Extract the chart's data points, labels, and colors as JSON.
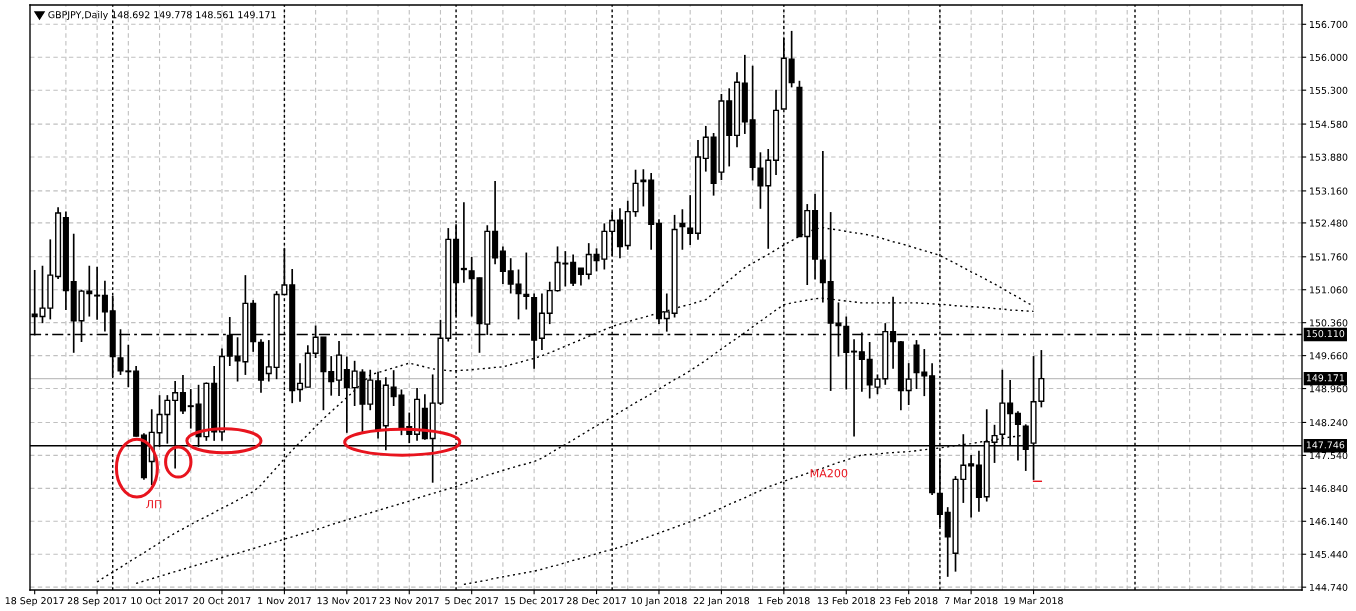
{
  "chart_data": {
    "type": "candlestick",
    "title": "GBPJPY,Daily 148.692 149.778 148.561 149.171",
    "categories": [
      "18 Sep 2017",
      null,
      null,
      null,
      null,
      null,
      null,
      null,
      "28 Sep 2017",
      null,
      null,
      null,
      null,
      null,
      null,
      null,
      "10 Oct 2017",
      null,
      null,
      null,
      null,
      null,
      null,
      null,
      "20 Oct 2017",
      null,
      null,
      null,
      null,
      null,
      null,
      null,
      "1 Nov 2017",
      null,
      null,
      null,
      null,
      null,
      null,
      null,
      "13 Nov 2017",
      null,
      null,
      null,
      null,
      null,
      null,
      null,
      "23 Nov 2017",
      null,
      null,
      null,
      null,
      null,
      null,
      null,
      "5 Dec 2017",
      null,
      null,
      null,
      null,
      null,
      null,
      null,
      "15 Dec 2017",
      null,
      null,
      null,
      null,
      null,
      null,
      null,
      "28 Dec 2017",
      null,
      null,
      null,
      null,
      null,
      null,
      null,
      "10 Jan 2018",
      null,
      null,
      null,
      null,
      null,
      null,
      null,
      "22 Jan 2018",
      null,
      null,
      null,
      null,
      null,
      null,
      null,
      "1 Feb 2018",
      null,
      null,
      null,
      null,
      null,
      null,
      null,
      "13 Feb 2018",
      null,
      null,
      null,
      null,
      null,
      null,
      null,
      "23 Feb 2018",
      null,
      null,
      null,
      null,
      null,
      null,
      null,
      "7 Mar 2018",
      null,
      null,
      null,
      null,
      null,
      null,
      null,
      "19 Mar 2018",
      null
    ],
    "ohlc": [
      [
        150.54,
        151.48,
        150.09,
        150.49
      ],
      [
        150.49,
        151.57,
        150.35,
        150.67
      ],
      [
        150.67,
        152.13,
        150.43,
        151.37
      ],
      [
        151.34,
        152.81,
        151.29,
        152.69
      ],
      [
        152.59,
        152.72,
        150.63,
        151.04
      ],
      [
        151.23,
        152.25,
        149.72,
        150.4
      ],
      [
        150.4,
        151.06,
        149.95,
        151.03
      ],
      [
        151.03,
        151.57,
        150.49,
        150.98
      ],
      [
        150.94,
        151.55,
        150.42,
        150.93
      ],
      [
        150.94,
        151.25,
        150.17,
        150.59
      ],
      [
        150.61,
        150.93,
        149.21,
        149.64
      ],
      [
        149.61,
        150.22,
        149.25,
        149.34
      ],
      [
        149.33,
        149.89,
        148.99,
        149.32
      ],
      [
        149.33,
        149.44,
        147.94,
        147.95
      ],
      [
        147.97,
        148.01,
        147.02,
        147.07
      ],
      [
        147.41,
        148.52,
        146.91,
        148.03
      ],
      [
        148.02,
        148.82,
        147.72,
        148.41
      ],
      [
        148.41,
        148.82,
        147.79,
        148.71
      ],
      [
        148.71,
        149.12,
        147.26,
        148.87
      ],
      [
        148.87,
        149.25,
        148.42,
        148.49
      ],
      [
        148.59,
        148.95,
        148.11,
        148.58
      ],
      [
        148.63,
        149.04,
        147.72,
        147.94
      ],
      [
        147.94,
        149.09,
        147.85,
        149.07
      ],
      [
        149.07,
        149.44,
        147.85,
        148.04
      ],
      [
        148.04,
        149.81,
        147.85,
        149.64
      ],
      [
        150.09,
        150.48,
        149.44,
        149.65
      ],
      [
        149.65,
        150.05,
        149.11,
        149.55
      ],
      [
        149.53,
        151.37,
        149.25,
        150.77
      ],
      [
        150.77,
        150.84,
        149.74,
        149.96
      ],
      [
        149.94,
        150.01,
        148.87,
        149.14
      ],
      [
        149.28,
        149.99,
        149.11,
        149.42
      ],
      [
        149.41,
        151.03,
        149.16,
        150.96
      ],
      [
        150.96,
        151.94,
        150.96,
        151.16
      ],
      [
        151.16,
        151.5,
        148.65,
        148.92
      ],
      [
        148.94,
        149.5,
        148.68,
        149.07
      ],
      [
        148.99,
        149.88,
        148.99,
        149.71
      ],
      [
        149.71,
        150.3,
        149.61,
        150.05
      ],
      [
        150.05,
        150.05,
        148.5,
        149.32
      ],
      [
        149.32,
        149.65,
        148.81,
        149.11
      ],
      [
        149.14,
        149.97,
        148.8,
        149.67
      ],
      [
        149.36,
        149.64,
        148.02,
        148.98
      ],
      [
        148.98,
        149.55,
        148.59,
        149.33
      ],
      [
        149.31,
        149.37,
        148.04,
        148.63
      ],
      [
        148.63,
        149.36,
        148.5,
        149.14
      ],
      [
        149.12,
        149.32,
        147.9,
        148.08
      ],
      [
        148.17,
        149.2,
        147.65,
        149.03
      ],
      [
        148.99,
        149.35,
        148.59,
        148.79
      ],
      [
        148.82,
        148.94,
        147.97,
        148.13
      ],
      [
        148.15,
        148.45,
        147.8,
        147.99
      ],
      [
        147.99,
        148.97,
        147.85,
        148.73
      ],
      [
        148.54,
        148.84,
        147.87,
        147.9
      ],
      [
        147.9,
        149.26,
        146.96,
        148.65
      ],
      [
        148.65,
        150.42,
        148.61,
        150.03
      ],
      [
        150.03,
        152.37,
        149.96,
        152.13
      ],
      [
        152.13,
        152.45,
        150.49,
        151.21
      ],
      [
        151.51,
        152.92,
        151.21,
        151.49
      ],
      [
        151.46,
        151.76,
        150.49,
        151.3
      ],
      [
        151.31,
        151.32,
        149.72,
        150.34
      ],
      [
        150.33,
        152.43,
        150.1,
        152.3
      ],
      [
        152.3,
        153.37,
        151.6,
        151.74
      ],
      [
        151.88,
        151.98,
        151.18,
        151.45
      ],
      [
        151.46,
        151.73,
        150.98,
        151.18
      ],
      [
        151.18,
        151.49,
        150.43,
        150.98
      ],
      [
        150.96,
        151.85,
        150.64,
        150.92
      ],
      [
        150.89,
        150.98,
        149.38,
        149.99
      ],
      [
        150.03,
        150.98,
        149.78,
        150.56
      ],
      [
        150.56,
        151.23,
        150.33,
        151.04
      ],
      [
        151.04,
        151.98,
        151.02,
        151.64
      ],
      [
        151.61,
        151.88,
        151.13,
        151.62
      ],
      [
        151.64,
        151.81,
        151.14,
        151.2
      ],
      [
        151.52,
        151.52,
        151.15,
        151.39
      ],
      [
        151.39,
        152.05,
        151.28,
        151.81
      ],
      [
        151.81,
        151.94,
        151.45,
        151.68
      ],
      [
        151.71,
        152.47,
        151.49,
        152.3
      ],
      [
        152.3,
        152.71,
        151.78,
        152.53
      ],
      [
        152.54,
        152.79,
        151.73,
        151.98
      ],
      [
        152.0,
        152.95,
        151.91,
        152.72
      ],
      [
        152.72,
        153.61,
        152.61,
        153.32
      ],
      [
        153.39,
        153.62,
        152.83,
        153.36
      ],
      [
        153.39,
        153.54,
        151.91,
        152.45
      ],
      [
        152.47,
        152.56,
        150.33,
        150.45
      ],
      [
        150.45,
        150.98,
        150.17,
        150.59
      ],
      [
        150.56,
        152.65,
        150.47,
        152.34
      ],
      [
        152.47,
        152.77,
        151.91,
        152.4
      ],
      [
        152.37,
        153.07,
        152.01,
        152.26
      ],
      [
        152.26,
        154.24,
        152.12,
        153.88
      ],
      [
        153.85,
        154.54,
        153.57,
        154.3
      ],
      [
        154.3,
        154.39,
        153.06,
        153.32
      ],
      [
        153.56,
        155.22,
        153.39,
        155.07
      ],
      [
        155.07,
        155.34,
        153.68,
        154.34
      ],
      [
        154.34,
        155.68,
        154.09,
        155.47
      ],
      [
        155.45,
        156.05,
        154.37,
        154.63
      ],
      [
        154.67,
        155.82,
        153.38,
        153.66
      ],
      [
        153.64,
        153.98,
        152.78,
        153.27
      ],
      [
        153.27,
        154.05,
        151.93,
        153.81
      ],
      [
        153.81,
        155.31,
        153.5,
        154.87
      ],
      [
        154.9,
        156.41,
        154.9,
        155.98
      ],
      [
        155.96,
        156.56,
        155.36,
        155.46
      ],
      [
        155.36,
        155.5,
        152.19,
        152.19
      ],
      [
        152.19,
        152.88,
        151.16,
        152.74
      ],
      [
        152.74,
        153.1,
        151.28,
        151.71
      ],
      [
        151.69,
        154.01,
        150.79,
        151.21
      ],
      [
        151.23,
        152.71,
        148.91,
        150.35
      ],
      [
        150.35,
        150.79,
        149.64,
        150.3
      ],
      [
        150.28,
        150.49,
        148.94,
        149.73
      ],
      [
        149.75,
        150.01,
        147.94,
        149.74
      ],
      [
        149.74,
        150.15,
        148.89,
        149.58
      ],
      [
        149.58,
        149.95,
        148.75,
        149.04
      ],
      [
        148.99,
        149.26,
        148.84,
        149.16
      ],
      [
        149.17,
        150.35,
        149.04,
        150.17
      ],
      [
        150.17,
        150.91,
        149.38,
        149.96
      ],
      [
        149.95,
        149.97,
        148.5,
        148.92
      ],
      [
        148.92,
        149.5,
        148.61,
        149.16
      ],
      [
        149.88,
        149.99,
        148.95,
        149.3
      ],
      [
        149.31,
        149.8,
        148.8,
        149.23
      ],
      [
        149.23,
        149.5,
        146.7,
        146.75
      ],
      [
        146.73,
        147.48,
        146.02,
        146.29
      ],
      [
        146.33,
        146.44,
        144.96,
        145.81
      ],
      [
        145.46,
        147.1,
        145.07,
        147.03
      ],
      [
        147.03,
        147.99,
        146.53,
        147.33
      ],
      [
        147.36,
        147.55,
        146.22,
        147.32
      ],
      [
        147.33,
        147.64,
        146.34,
        146.65
      ],
      [
        146.66,
        148.52,
        146.56,
        147.83
      ],
      [
        147.82,
        148.19,
        147.38,
        147.96
      ],
      [
        147.99,
        149.36,
        147.74,
        148.65
      ],
      [
        148.65,
        149.14,
        147.74,
        148.43
      ],
      [
        148.43,
        148.48,
        147.43,
        148.2
      ],
      [
        148.16,
        148.2,
        147.21,
        147.67
      ],
      [
        147.8,
        149.65,
        147.02,
        148.68
      ],
      [
        148.692,
        149.778,
        148.561,
        149.171
      ]
    ],
    "series": [
      {
        "type": "line",
        "color": "#000000",
        "line_style": "dotted",
        "values": [
          null,
          null,
          null,
          null,
          null,
          null,
          null,
          null,
          144.85,
          144.96,
          145.06,
          145.16,
          145.27,
          145.37,
          145.47,
          145.58,
          145.68,
          145.79,
          145.89,
          145.98,
          146.07,
          146.16,
          146.24,
          146.33,
          146.42,
          146.5,
          146.59,
          146.68,
          146.77,
          146.91,
          147.1,
          147.28,
          147.47,
          147.65,
          147.82,
          147.98,
          148.15,
          148.32,
          148.47,
          148.62,
          148.77,
          148.92,
          149.08,
          149.25,
          149.3,
          149.35,
          149.4,
          149.45,
          149.5,
          149.46,
          149.42,
          149.38,
          149.36,
          149.34,
          149.34,
          149.35,
          149.36,
          149.38,
          149.39,
          149.41,
          149.42,
          149.47,
          149.51,
          149.56,
          149.6,
          149.66,
          149.72,
          149.79,
          149.86,
          149.93,
          150.0,
          150.07,
          150.14,
          150.21,
          150.28,
          150.33,
          150.38,
          150.43,
          150.47,
          150.52,
          150.57,
          150.61,
          150.66,
          150.71,
          150.75,
          150.8,
          150.85,
          150.99,
          151.12,
          151.26,
          151.4,
          151.53,
          151.62,
          151.72,
          151.81,
          151.91,
          152.01,
          152.1,
          152.2,
          152.28,
          152.35,
          152.38,
          152.35,
          152.33,
          152.3,
          152.27,
          152.25,
          152.22,
          152.18,
          152.13,
          152.08,
          152.04,
          151.99,
          151.94,
          151.89,
          151.84,
          151.79,
          151.7,
          151.62,
          151.53,
          151.44,
          151.36,
          151.27,
          151.18,
          151.09,
          150.99,
          150.9,
          150.8,
          150.71,
          null
        ]
      },
      {
        "type": "line",
        "color": "#000000",
        "line_style": "dotted",
        "values": [
          null,
          null,
          null,
          null,
          null,
          null,
          null,
          null,
          null,
          null,
          null,
          null,
          null,
          144.82,
          144.87,
          144.92,
          144.97,
          145.02,
          145.07,
          145.12,
          145.17,
          145.22,
          145.27,
          145.32,
          145.37,
          145.42,
          145.46,
          145.51,
          145.56,
          145.61,
          145.66,
          145.71,
          145.76,
          145.81,
          145.86,
          145.91,
          145.96,
          146.01,
          146.07,
          146.12,
          146.17,
          146.22,
          146.27,
          146.32,
          146.37,
          146.42,
          146.47,
          146.52,
          146.57,
          146.63,
          146.68,
          146.73,
          146.78,
          146.83,
          146.88,
          146.94,
          147.0,
          147.06,
          147.12,
          147.17,
          147.22,
          147.27,
          147.32,
          147.36,
          147.41,
          147.48,
          147.58,
          147.68,
          147.77,
          147.87,
          147.97,
          148.07,
          148.17,
          148.26,
          148.36,
          148.46,
          148.56,
          148.66,
          148.75,
          148.85,
          148.95,
          149.05,
          149.15,
          149.24,
          149.34,
          149.45,
          149.56,
          149.68,
          149.8,
          149.92,
          150.03,
          150.15,
          150.27,
          150.39,
          150.51,
          150.63,
          150.74,
          150.78,
          150.81,
          150.84,
          150.87,
          150.88,
          150.86,
          150.84,
          150.82,
          150.8,
          150.78,
          150.78,
          150.78,
          150.78,
          150.78,
          150.78,
          150.78,
          150.78,
          150.77,
          150.76,
          150.75,
          150.74,
          150.72,
          150.71,
          150.7,
          150.69,
          150.68,
          150.66,
          150.65,
          150.63,
          150.62,
          150.61,
          150.6,
          null
        ]
      },
      {
        "type": "line",
        "color": "#000000",
        "line_style": "dotted",
        "values": [
          null,
          null,
          null,
          null,
          null,
          null,
          null,
          null,
          null,
          null,
          null,
          null,
          null,
          null,
          null,
          null,
          null,
          null,
          null,
          null,
          null,
          null,
          null,
          null,
          null,
          null,
          null,
          null,
          null,
          null,
          null,
          null,
          null,
          null,
          null,
          null,
          null,
          null,
          null,
          null,
          null,
          null,
          null,
          null,
          null,
          null,
          null,
          null,
          null,
          null,
          null,
          null,
          null,
          null,
          null,
          144.8,
          144.83,
          144.86,
          144.89,
          144.93,
          144.96,
          144.99,
          145.02,
          145.05,
          145.08,
          145.12,
          145.17,
          145.21,
          145.26,
          145.31,
          145.35,
          145.4,
          145.45,
          145.5,
          145.54,
          145.59,
          145.65,
          145.71,
          145.77,
          145.83,
          145.89,
          145.95,
          146.01,
          146.07,
          146.13,
          146.2,
          146.27,
          146.35,
          146.42,
          146.5,
          146.57,
          146.64,
          146.72,
          146.79,
          146.87,
          146.93,
          146.99,
          147.05,
          147.1,
          147.16,
          147.22,
          147.27,
          147.33,
          147.39,
          147.44,
          147.5,
          147.55,
          147.56,
          147.57,
          147.59,
          147.6,
          147.61,
          147.62,
          147.64,
          147.66,
          147.68,
          147.7,
          147.72,
          147.75,
          147.77,
          147.79,
          147.82,
          147.85,
          147.87,
          147.9,
          147.93,
          147.95,
          147.98,
          null,
          null
        ]
      },
      {
        "type": "line",
        "color": "#e8141e",
        "line_style": "solid",
        "values": [
          null,
          null,
          null,
          null,
          null,
          null,
          null,
          null,
          null,
          null,
          null,
          null,
          null,
          null,
          null,
          null,
          null,
          null,
          null,
          null,
          null,
          null,
          null,
          null,
          null,
          null,
          null,
          null,
          null,
          null,
          null,
          null,
          null,
          null,
          null,
          null,
          null,
          null,
          null,
          null,
          null,
          null,
          null,
          null,
          null,
          null,
          null,
          null,
          null,
          null,
          null,
          null,
          null,
          null,
          null,
          null,
          null,
          null,
          null,
          null,
          null,
          null,
          null,
          null,
          null,
          null,
          null,
          null,
          null,
          null,
          null,
          null,
          null,
          null,
          null,
          null,
          null,
          null,
          null,
          null,
          null,
          null,
          null,
          null,
          null,
          null,
          null,
          null,
          null,
          null,
          null,
          null,
          null,
          null,
          null,
          null,
          null,
          null,
          null,
          null,
          null,
          null,
          null,
          null,
          null,
          null,
          null,
          null,
          null,
          null,
          null,
          null,
          null,
          null,
          null,
          null,
          null,
          null,
          null,
          null,
          null,
          null,
          null,
          null,
          null,
          null,
          null,
          null,
          146.99,
          146.99
        ]
      }
    ],
    "ylim": [
      144.68,
      157.11
    ],
    "yticks": [
      {
        "value": 156.7,
        "label": "156.700"
      },
      {
        "value": 156.0,
        "label": "156.000"
      },
      {
        "value": 155.3,
        "label": "155.300"
      },
      {
        "value": 154.58,
        "label": "154.580"
      },
      {
        "value": 153.88,
        "label": "153.880"
      },
      {
        "value": 153.16,
        "label": "153.160"
      },
      {
        "value": 152.48,
        "label": "152.480"
      },
      {
        "value": 151.76,
        "label": "151.760"
      },
      {
        "value": 151.06,
        "label": "151.060"
      },
      {
        "value": 150.36,
        "label": "150.360"
      },
      {
        "value": 149.66,
        "label": "149.660"
      },
      {
        "value": 148.96,
        "label": "148.960"
      },
      {
        "value": 148.24,
        "label": "148.240"
      },
      {
        "value": 147.54,
        "label": "147.540"
      },
      {
        "value": 146.84,
        "label": "146.840"
      },
      {
        "value": 146.14,
        "label": "146.140"
      },
      {
        "value": 145.44,
        "label": "145.440"
      },
      {
        "value": 144.74,
        "label": "144.740"
      }
    ],
    "ref_lines": [
      {
        "axis": "y",
        "value": 150.11,
        "label": "150.110",
        "color": "#000000",
        "line_style": "dashed"
      },
      {
        "axis": "y",
        "value": 147.746,
        "label": "147.746",
        "color": "#000000",
        "line_style": "solid"
      },
      {
        "axis": "y",
        "value": 149.171,
        "label": "149.171",
        "color": "#c0c0c0",
        "line_style": "solid"
      }
    ],
    "annotations": [
      "ЛП",
      "MA200"
    ],
    "grid": true,
    "legend": false
  }
}
